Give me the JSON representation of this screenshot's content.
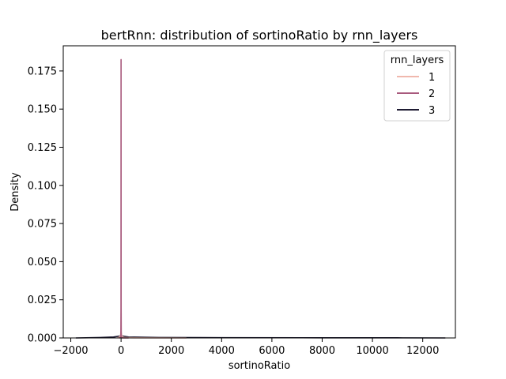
{
  "chart_data": {
    "type": "line",
    "title": "bertRnn: distribution of sortinoRatio by rnn_layers",
    "xlabel": "sortinoRatio",
    "ylabel": "Density",
    "xlim": [
      -2300,
      13300
    ],
    "ylim": [
      0,
      0.1915
    ],
    "xticks": [
      -2000,
      0,
      2000,
      4000,
      6000,
      8000,
      10000,
      12000
    ],
    "xtick_labels": [
      "−2000",
      "0",
      "2000",
      "4000",
      "6000",
      "8000",
      "10000",
      "12000"
    ],
    "yticks": [
      0.0,
      0.025,
      0.05,
      0.075,
      0.1,
      0.125,
      0.15,
      0.175
    ],
    "ytick_labels": [
      "0.000",
      "0.025",
      "0.050",
      "0.075",
      "0.100",
      "0.125",
      "0.150",
      "0.175"
    ],
    "grid": false,
    "legend": {
      "title": "rnn_layers",
      "placement": "top-right"
    },
    "series": [
      {
        "name": "1",
        "color": "#f0b8ad",
        "x": [
          -150,
          -40,
          -15,
          0,
          15,
          40,
          150,
          500,
          1500,
          2600
        ],
        "y": [
          0.0,
          0.0008,
          0.0025,
          0.0045,
          0.0025,
          0.0008,
          0.0002,
          0.0001,
          3e-05,
          0.0
        ]
      },
      {
        "name": "2",
        "color": "#a8597c",
        "x": [
          -80,
          -25,
          -8,
          -3,
          0,
          3,
          8,
          25,
          80,
          300
        ],
        "y": [
          0.0,
          0.0001,
          0.001,
          0.02,
          0.1825,
          0.02,
          0.001,
          0.0001,
          0.0,
          0.0
        ]
      },
      {
        "name": "3",
        "color": "#1e1b33",
        "x": [
          -1800,
          -1000,
          -300,
          -60,
          0,
          60,
          300,
          1500,
          4000,
          8000,
          11000,
          12900
        ],
        "y": [
          0.0,
          0.0002,
          0.0006,
          0.0012,
          0.0016,
          0.0012,
          0.0006,
          0.0003,
          0.00018,
          0.00012,
          8e-05,
          0.0
        ]
      }
    ]
  }
}
